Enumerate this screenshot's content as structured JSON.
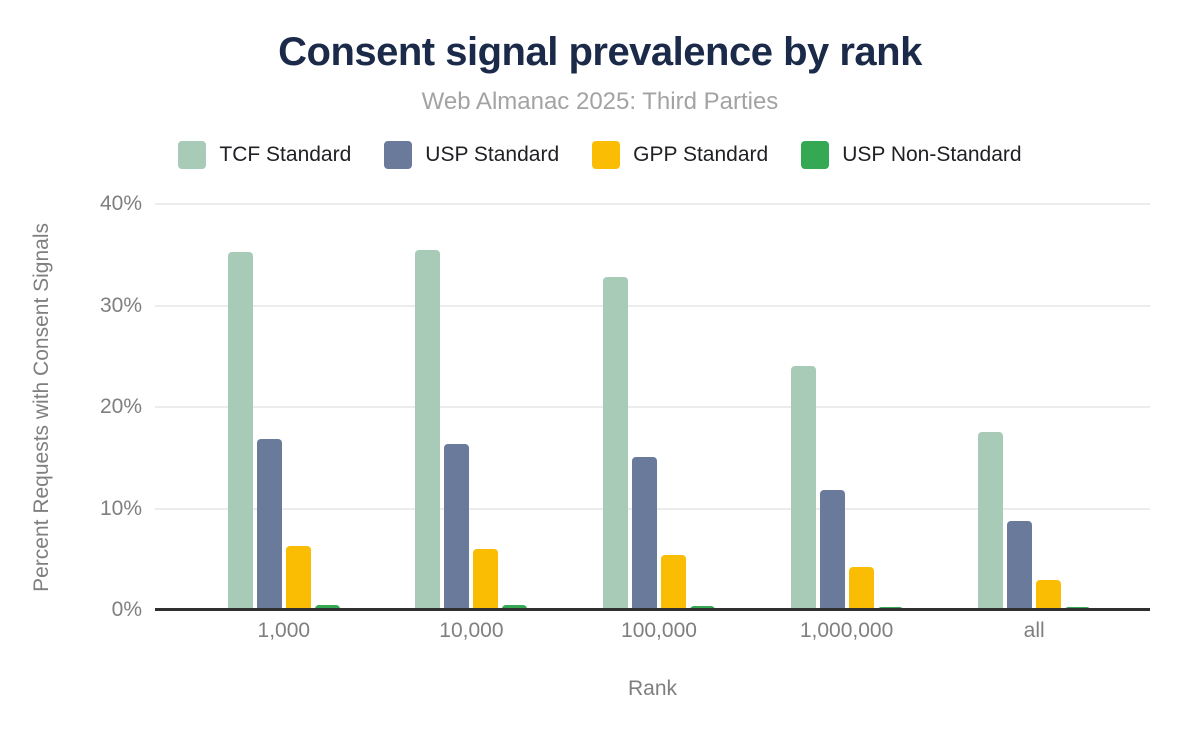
{
  "chart_data": {
    "type": "bar",
    "title": "Consent signal prevalence by rank",
    "subtitle": "Web Almanac 2025: Third Parties",
    "xlabel": "Rank",
    "ylabel": "Percent Requests with Consent Signals",
    "categories": [
      "1,000",
      "10,000",
      "100,000",
      "1,000,000",
      "all"
    ],
    "series": [
      {
        "name": "TCF Standard",
        "color": "#a8cbb8",
        "values": [
          35.3,
          35.5,
          32.8,
          24.0,
          17.5
        ]
      },
      {
        "name": "USP Standard",
        "color": "#697a9b",
        "values": [
          16.8,
          16.4,
          15.1,
          11.8,
          8.8
        ]
      },
      {
        "name": "GPP Standard",
        "color": "#fbbc04",
        "values": [
          6.3,
          6.0,
          5.4,
          4.2,
          3.0
        ]
      },
      {
        "name": "USP Non-Standard",
        "color": "#34a853",
        "values": [
          0.5,
          0.5,
          0.4,
          0.3,
          0.25
        ]
      }
    ],
    "ylim": [
      0,
      40
    ],
    "yticks": [
      {
        "value": 0,
        "label": "0%"
      },
      {
        "value": 10,
        "label": "10%"
      },
      {
        "value": 20,
        "label": "20%"
      },
      {
        "value": 30,
        "label": "30%"
      },
      {
        "value": 40,
        "label": "40%"
      }
    ],
    "grid": true,
    "legend_position": "top",
    "style": {
      "title_color": "#1b2a49",
      "subtitle_color": "#a3a3a3",
      "axis_text_color": "#7f7f7f",
      "legend_text_color": "#202124",
      "gridline_color": "#ececec",
      "axis_line_color": "#2f2f2f",
      "background": "#ffffff"
    }
  }
}
